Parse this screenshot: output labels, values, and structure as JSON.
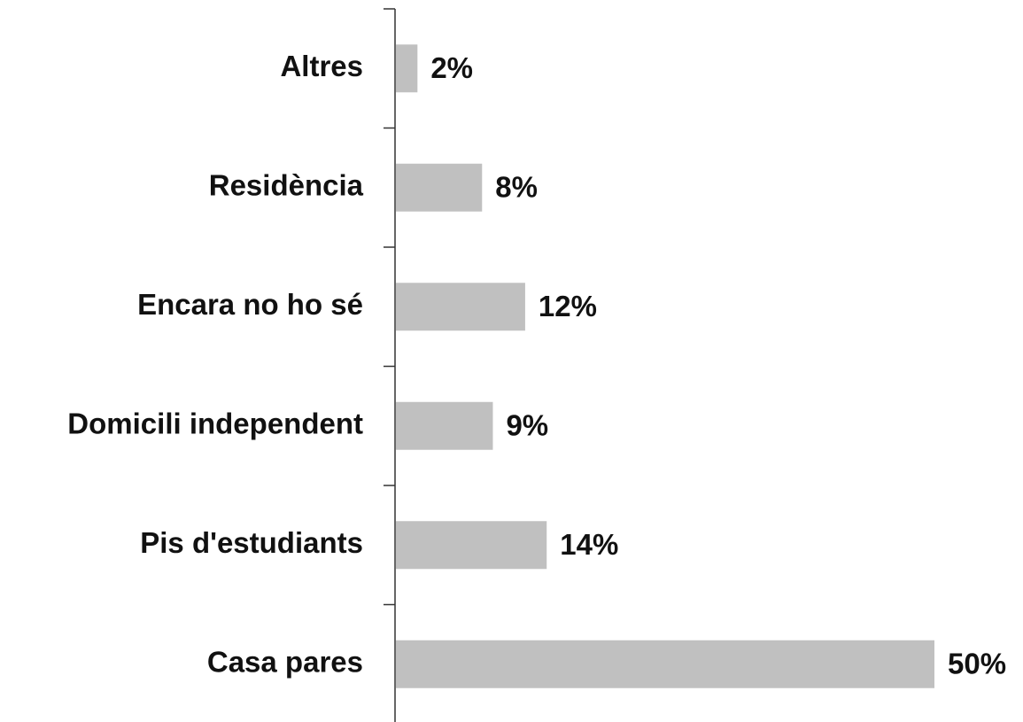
{
  "chart_data": {
    "type": "barh",
    "categories": [
      "Altres",
      "Residència",
      "Encara no ho sé",
      "Domicili independent",
      "Pis d'estudiants",
      "Casa pares"
    ],
    "values": [
      2,
      8,
      12,
      9,
      14,
      50
    ],
    "value_labels": [
      "2%",
      "8%",
      "12%",
      "9%",
      "14%",
      "50%"
    ],
    "color": "#c0c0c0"
  }
}
